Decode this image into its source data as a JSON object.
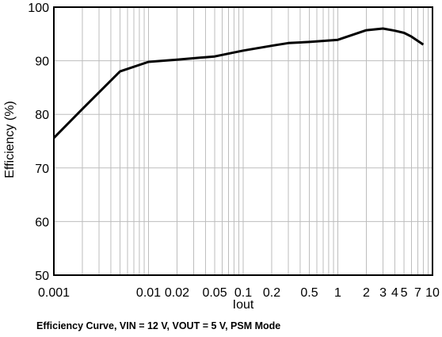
{
  "chart_data": {
    "type": "line",
    "title": "Efficiency Curve, VIN = 12 V, VOUT = 5 V, PSM Mode",
    "xlabel": "Iout",
    "ylabel": "Efficiency (%)",
    "x_scale": "log",
    "xlim": [
      0.001,
      10
    ],
    "ylim": [
      50,
      100
    ],
    "grid": true,
    "legend": "none",
    "x_ticks": [
      {
        "value": 0.001,
        "label": "0.001"
      },
      {
        "value": 0.01,
        "label": "0.01"
      },
      {
        "value": 0.02,
        "label": "0.02"
      },
      {
        "value": 0.05,
        "label": "0.05"
      },
      {
        "value": 0.1,
        "label": "0.1"
      },
      {
        "value": 0.2,
        "label": "0.2"
      },
      {
        "value": 0.5,
        "label": "0.5"
      },
      {
        "value": 1,
        "label": "1"
      },
      {
        "value": 2,
        "label": "2"
      },
      {
        "value": 3,
        "label": "3"
      },
      {
        "value": 4,
        "label": "4"
      },
      {
        "value": 5,
        "label": "5"
      },
      {
        "value": 7,
        "label": "7"
      },
      {
        "value": 10,
        "label": "10"
      }
    ],
    "y_ticks": [
      50,
      60,
      70,
      80,
      90,
      100
    ],
    "series": [
      {
        "x": [
          0.001,
          0.002,
          0.005,
          0.01,
          0.02,
          0.05,
          0.1,
          0.2,
          0.3,
          0.5,
          1,
          2,
          3,
          4,
          5,
          6,
          8
        ],
        "y": [
          75.6,
          81.0,
          88.0,
          89.8,
          90.2,
          90.8,
          91.9,
          92.8,
          93.3,
          93.5,
          93.9,
          95.7,
          96.0,
          95.6,
          95.2,
          94.5,
          93.0
        ]
      }
    ]
  }
}
